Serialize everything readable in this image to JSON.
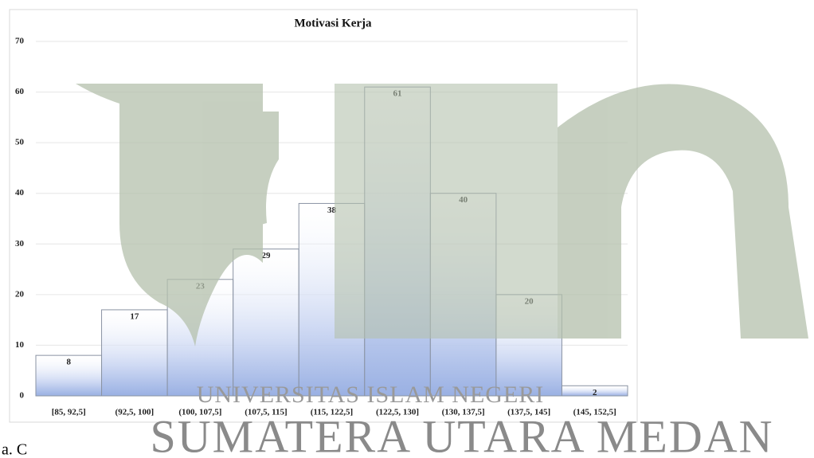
{
  "chart_data": {
    "type": "bar",
    "title": "Motivasi Kerja",
    "categories": [
      "[85, 92,5]",
      "(92,5, 100]",
      "(100, 107,5]",
      "(107,5, 115]",
      "(115, 122,5]",
      "(122,5, 130]",
      "(130, 137,5]",
      "(137,5, 145]",
      "(145, 152,5]"
    ],
    "values": [
      8,
      17,
      23,
      29,
      38,
      61,
      40,
      20,
      2
    ],
    "color": "#8fa8e0",
    "ylim": [
      0,
      70
    ],
    "yticks": [
      0,
      10,
      20,
      30,
      40,
      50,
      60,
      70
    ],
    "grid": true
  },
  "watermark": {
    "line1": "UNIVERSITAS ISLAM NEGERI",
    "line2": "SUMATERA UTARA MEDAN"
  },
  "caption": "a. C"
}
